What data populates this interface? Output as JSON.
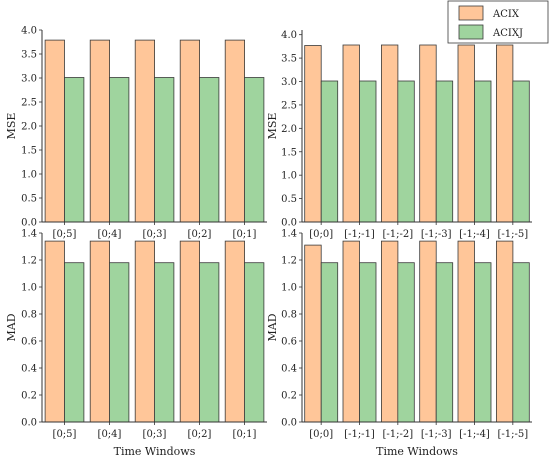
{
  "colors": {
    "acix": "#FFC699",
    "acixj": "#9FD49E",
    "edge": "#3a3a3a"
  },
  "legend": [
    "ACIX",
    "ACIXJ"
  ],
  "chart_data": [
    {
      "type": "bar",
      "categories": [
        "[0;5]",
        "[0;4]",
        "[0;3]",
        "[0;2]",
        "[0;1]"
      ],
      "series": [
        {
          "name": "ACIX",
          "values": [
            3.79,
            3.79,
            3.79,
            3.79,
            3.79
          ]
        },
        {
          "name": "ACIXJ",
          "values": [
            3.01,
            3.01,
            3.01,
            3.01,
            3.01
          ]
        }
      ],
      "ylabel": "MSE",
      "xlabel": "",
      "ylim": [
        0,
        4.0
      ],
      "yticks": [
        "0.0",
        "0.5",
        "1.0",
        "1.5",
        "2.0",
        "2.5",
        "3.0",
        "3.5",
        "4.0"
      ]
    },
    {
      "type": "bar",
      "categories": [
        "[0;0]",
        "[-1;-1]",
        "[-1;-2]",
        "[-1;-3]",
        "[-1;-4]",
        "[-1;-5]"
      ],
      "series": [
        {
          "name": "ACIX",
          "values": [
            3.77,
            3.78,
            3.78,
            3.78,
            3.78,
            3.78
          ]
        },
        {
          "name": "ACIXJ",
          "values": [
            3.01,
            3.01,
            3.01,
            3.01,
            3.01,
            3.01
          ]
        }
      ],
      "ylabel": "MSE",
      "xlabel": "",
      "ylim": [
        0,
        4.1
      ],
      "yticks": [
        "0.0",
        "0.5",
        "1.0",
        "1.5",
        "2.0",
        "2.5",
        "3.0",
        "3.5",
        "4.0"
      ]
    },
    {
      "type": "bar",
      "categories": [
        "[0;5]",
        "[0;4]",
        "[0;3]",
        "[0;2]",
        "[0;1]"
      ],
      "series": [
        {
          "name": "ACIX",
          "values": [
            1.34,
            1.34,
            1.34,
            1.34,
            1.34
          ]
        },
        {
          "name": "ACIXJ",
          "values": [
            1.18,
            1.18,
            1.18,
            1.18,
            1.18
          ]
        }
      ],
      "ylabel": "MAD",
      "xlabel": "Time Windows",
      "ylim": [
        0,
        1.4
      ],
      "yticks": [
        "0.0",
        "0.2",
        "0.4",
        "0.6",
        "0.8",
        "1.0",
        "1.2",
        "1.4"
      ]
    },
    {
      "type": "bar",
      "categories": [
        "[0;0]",
        "[-1;-1]",
        "[-1;-2]",
        "[-1;-3]",
        "[-1;-4]",
        "[-1;-5]"
      ],
      "series": [
        {
          "name": "ACIX",
          "values": [
            1.31,
            1.34,
            1.34,
            1.34,
            1.34,
            1.34
          ]
        },
        {
          "name": "ACIXJ",
          "values": [
            1.18,
            1.18,
            1.18,
            1.18,
            1.18,
            1.18
          ]
        }
      ],
      "ylabel": "MAD",
      "xlabel": "Time Windows",
      "ylim": [
        0,
        1.4
      ],
      "yticks": [
        "0.0",
        "0.2",
        "0.4",
        "0.6",
        "0.8",
        "1.0",
        "1.2",
        "1.4"
      ]
    }
  ]
}
